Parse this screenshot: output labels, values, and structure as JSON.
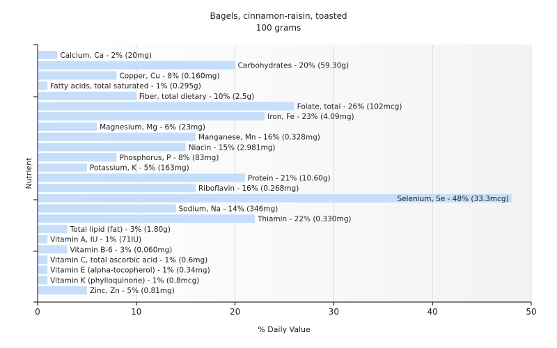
{
  "chart_data": {
    "type": "bar",
    "orientation": "horizontal",
    "title": "Bagels, cinnamon-raisin, toasted",
    "subtitle": "100 grams",
    "xlabel": "% Daily Value",
    "ylabel": "Nutrient",
    "xlim": [
      0,
      50
    ],
    "xticks": [
      0,
      10,
      20,
      30,
      40,
      50
    ],
    "grid": "vertical",
    "bar_color": "#c6defa",
    "categories": [
      "Calcium, Ca - 2% (20mg)",
      "Carbohydrates - 20% (59.30g)",
      "Copper, Cu - 8% (0.160mg)",
      "Fatty acids, total saturated - 1% (0.295g)",
      "Fiber, total dietary - 10% (2.5g)",
      "Folate, total - 26% (102mcg)",
      "Iron, Fe - 23% (4.09mg)",
      "Magnesium, Mg - 6% (23mg)",
      "Manganese, Mn - 16% (0.328mg)",
      "Niacin - 15% (2.981mg)",
      "Phosphorus, P - 8% (83mg)",
      "Potassium, K - 5% (163mg)",
      "Protein - 21% (10.60g)",
      "Riboflavin - 16% (0.268mg)",
      "Selenium, Se - 48% (33.3mcg)",
      "Sodium, Na - 14% (346mg)",
      "Thiamin - 22% (0.330mg)",
      "Total lipid (fat) - 3% (1.80g)",
      "Vitamin A, IU - 1% (71IU)",
      "Vitamin B-6 - 3% (0.060mg)",
      "Vitamin C, total ascorbic acid - 1% (0.6mg)",
      "Vitamin E (alpha-tocopherol) - 1% (0.34mg)",
      "Vitamin K (phylloquinone) - 1% (0.8mcg)",
      "Zinc, Zn - 5% (0.81mg)"
    ],
    "values": [
      2,
      20,
      8,
      1,
      10,
      26,
      23,
      6,
      16,
      15,
      8,
      5,
      21,
      16,
      48,
      14,
      22,
      3,
      1,
      3,
      1,
      1,
      1,
      5
    ]
  }
}
